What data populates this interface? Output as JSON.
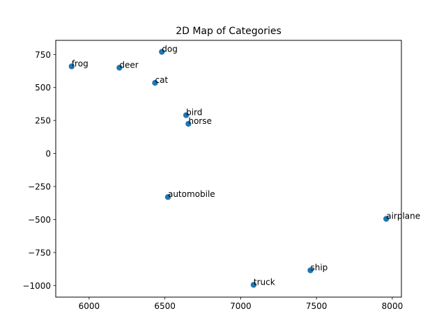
{
  "chart_data": {
    "type": "scatter",
    "title": "2D Map of Categories",
    "xlabel": "",
    "ylabel": "",
    "xlim": [
      5780,
      8060
    ],
    "ylim": [
      -1088,
      857
    ],
    "xticks": [
      6000,
      6500,
      7000,
      7500,
      8000
    ],
    "yticks": [
      -1000,
      -750,
      -500,
      -250,
      0,
      250,
      500,
      750
    ],
    "xtick_labels": [
      "6000",
      "6500",
      "7000",
      "7500",
      "8000"
    ],
    "ytick_labels": [
      "−1000",
      "−750",
      "−500",
      "−250",
      "0",
      "250",
      "500",
      "750"
    ],
    "grid": false,
    "marker_color": "#1f77b4",
    "points": [
      {
        "label": "frog",
        "x": 5885,
        "y": 660
      },
      {
        "label": "deer",
        "x": 6200,
        "y": 650
      },
      {
        "label": "dog",
        "x": 6480,
        "y": 770
      },
      {
        "label": "cat",
        "x": 6435,
        "y": 535
      },
      {
        "label": "bird",
        "x": 6640,
        "y": 290
      },
      {
        "label": "horse",
        "x": 6655,
        "y": 225
      },
      {
        "label": "automobile",
        "x": 6520,
        "y": -330
      },
      {
        "label": "airplane",
        "x": 7960,
        "y": -495
      },
      {
        "label": "ship",
        "x": 7460,
        "y": -885
      },
      {
        "label": "truck",
        "x": 7085,
        "y": -995
      }
    ]
  }
}
